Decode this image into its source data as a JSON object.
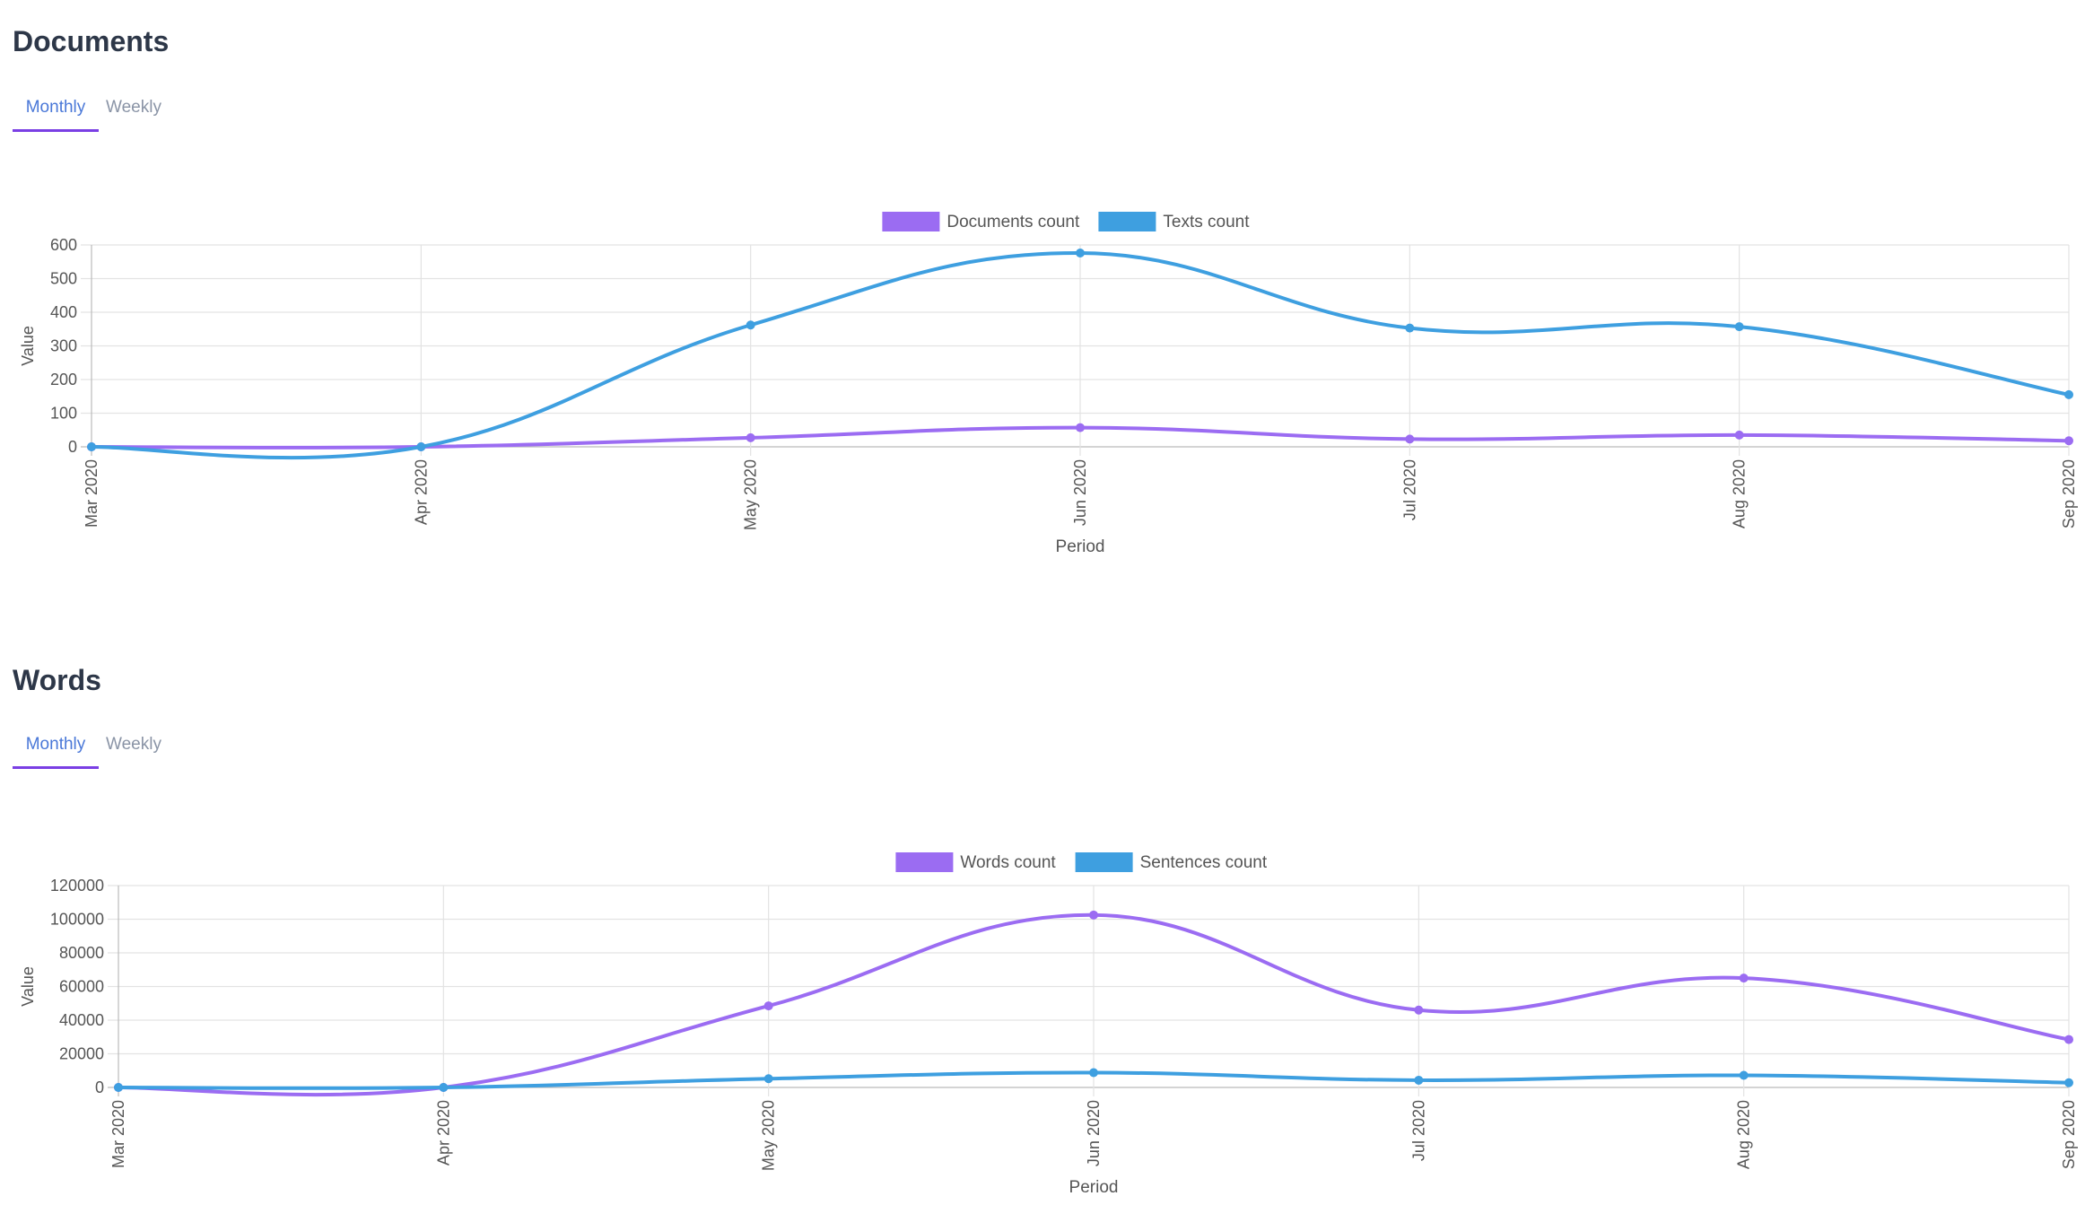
{
  "sections": [
    {
      "title": "Documents",
      "tabs": [
        {
          "label": "Monthly",
          "active": true
        },
        {
          "label": "Weekly",
          "active": false
        }
      ]
    },
    {
      "title": "Words",
      "tabs": [
        {
          "label": "Monthly",
          "active": true
        },
        {
          "label": "Weekly",
          "active": false
        }
      ]
    }
  ],
  "chart_data": [
    {
      "type": "line",
      "categories": [
        "Mar 2020",
        "Apr 2020",
        "May 2020",
        "Jun 2020",
        "Jul 2020",
        "Aug 2020",
        "Sep 2020"
      ],
      "series": [
        {
          "name": "Documents count",
          "color": "#9b6cf2",
          "values": [
            0,
            0,
            27,
            57,
            23,
            35,
            18
          ]
        },
        {
          "name": "Texts count",
          "color": "#3e9fe0",
          "values": [
            0,
            0,
            362,
            576,
            353,
            357,
            155
          ]
        }
      ],
      "xlabel": "Period",
      "ylabel": "Value",
      "ylim": [
        0,
        600
      ],
      "yticks": [
        0,
        100,
        200,
        300,
        400,
        500,
        600
      ],
      "grid": true,
      "legend": "top-center"
    },
    {
      "type": "line",
      "categories": [
        "Mar 2020",
        "Apr 2020",
        "May 2020",
        "Jun 2020",
        "Jul 2020",
        "Aug 2020",
        "Sep 2020"
      ],
      "series": [
        {
          "name": "Words count",
          "color": "#9b6cf2",
          "values": [
            0,
            0,
            48500,
            102500,
            46000,
            65000,
            28500
          ]
        },
        {
          "name": "Sentences count",
          "color": "#3e9fe0",
          "values": [
            0,
            0,
            5200,
            8800,
            4300,
            7200,
            2800
          ]
        }
      ],
      "xlabel": "Period",
      "ylabel": "Value",
      "ylim": [
        0,
        120000
      ],
      "yticks": [
        0,
        20000,
        40000,
        60000,
        80000,
        100000,
        120000
      ],
      "grid": true,
      "legend": "top-center"
    }
  ]
}
